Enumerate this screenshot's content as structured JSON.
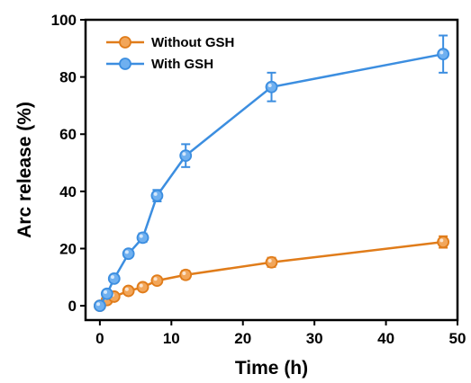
{
  "chart_data": {
    "type": "line",
    "xlabel": "Time (h)",
    "ylabel": "Arc release (%)",
    "xlim": [
      -2,
      50
    ],
    "ylim": [
      -5,
      100
    ],
    "xticks": [
      0,
      10,
      20,
      30,
      40,
      50
    ],
    "yticks": [
      0,
      20,
      40,
      60,
      80,
      100
    ],
    "legend_position": "top-left",
    "grid": false,
    "series": [
      {
        "name": "Without GSH",
        "color": "#E07C1A",
        "marker_fill": "#F2A65A",
        "x": [
          0,
          1,
          2,
          4,
          6,
          8,
          12,
          24,
          48
        ],
        "y": [
          0,
          2,
          3.2,
          5.2,
          6.5,
          8.8,
          10.8,
          15.2,
          22.3
        ],
        "error": [
          0.5,
          0.7,
          0.8,
          1.0,
          1.0,
          1.2,
          1.4,
          1.6,
          2.0
        ]
      },
      {
        "name": "With GSH",
        "color": "#3C8EE0",
        "marker_fill": "#6FB0F0",
        "x": [
          0,
          1,
          2,
          4,
          6,
          8,
          12,
          24,
          48
        ],
        "y": [
          0,
          4.2,
          9.5,
          18.2,
          23.8,
          38.5,
          52.5,
          76.5,
          88
        ],
        "error": [
          0.5,
          1.0,
          1.0,
          1.2,
          1.5,
          2.0,
          4.0,
          5.0,
          6.5
        ]
      }
    ]
  }
}
